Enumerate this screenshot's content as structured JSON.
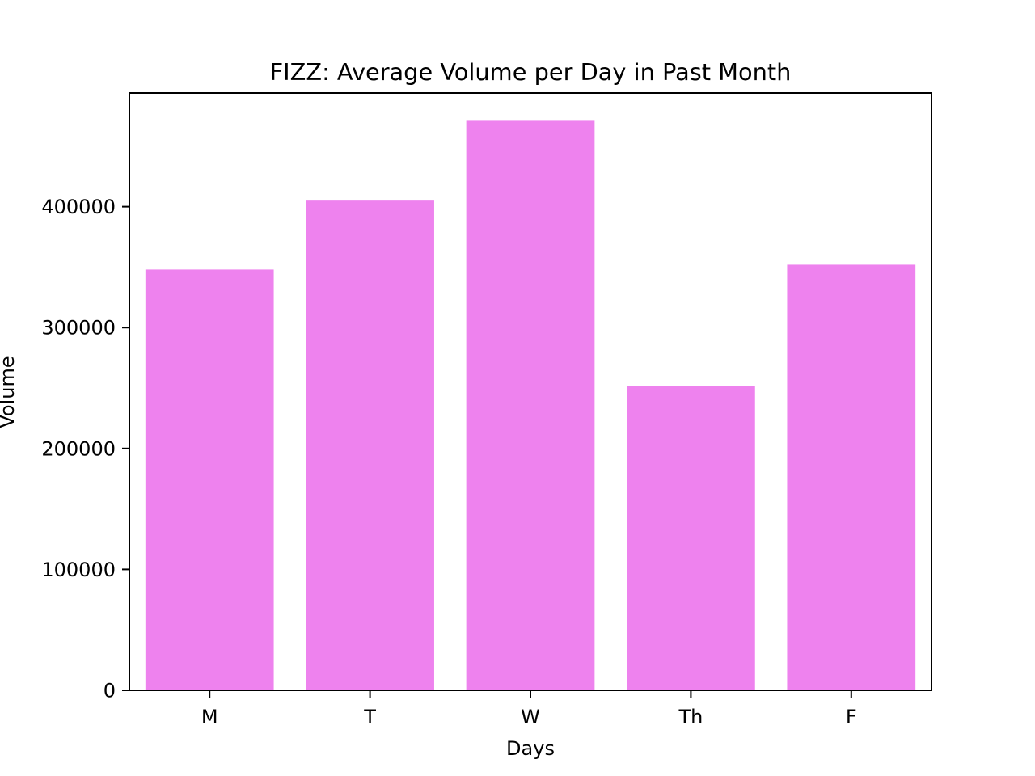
{
  "chart_data": {
    "type": "bar",
    "title": "FIZZ: Average Volume per Day in Past Month",
    "xlabel": "Days",
    "ylabel": "Volume",
    "categories": [
      "M",
      "T",
      "W",
      "Th",
      "F"
    ],
    "values": [
      348000,
      405000,
      471000,
      252000,
      352000
    ],
    "ylim": [
      0,
      494000
    ],
    "yticks": [
      0,
      100000,
      200000,
      300000,
      400000
    ],
    "ytick_labels": [
      "0",
      "100000",
      "200000",
      "300000",
      "400000"
    ],
    "bar_color": "#ee82ee",
    "grid": false,
    "legend": false
  }
}
